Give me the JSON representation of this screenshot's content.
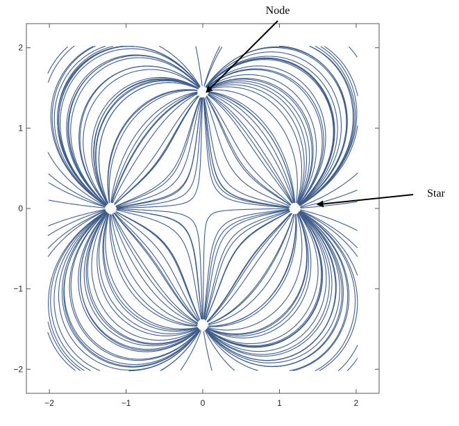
{
  "chart_data": {
    "type": "streamplot",
    "xlim": [
      -2.3,
      2.3
    ],
    "ylim": [
      -2.3,
      2.3
    ],
    "xticks": [
      {
        "value": -2,
        "label": "−2"
      },
      {
        "value": -1,
        "label": "−1"
      },
      {
        "value": 0,
        "label": "0"
      },
      {
        "value": 1,
        "label": "1"
      },
      {
        "value": 2,
        "label": "2"
      }
    ],
    "yticks": [
      {
        "value": -2,
        "label": "−2"
      },
      {
        "value": -1,
        "label": "−1"
      },
      {
        "value": 0,
        "label": "0"
      },
      {
        "value": 1,
        "label": "1"
      },
      {
        "value": 2,
        "label": "2"
      }
    ],
    "grid": false,
    "stream_color": "#3f5c8a",
    "critical_points": [
      {
        "x": 0,
        "y": 1.45,
        "kind": "node"
      },
      {
        "x": 0,
        "y": -1.45,
        "kind": "node"
      },
      {
        "x": -1.2,
        "y": 0,
        "kind": "star"
      },
      {
        "x": 1.2,
        "y": 0,
        "kind": "star"
      }
    ],
    "annotations": [
      {
        "text": "Node",
        "target_x": 0.05,
        "target_y": 1.45
      },
      {
        "text": "Star",
        "target_x": 1.5,
        "target_y": 0.05
      }
    ]
  }
}
